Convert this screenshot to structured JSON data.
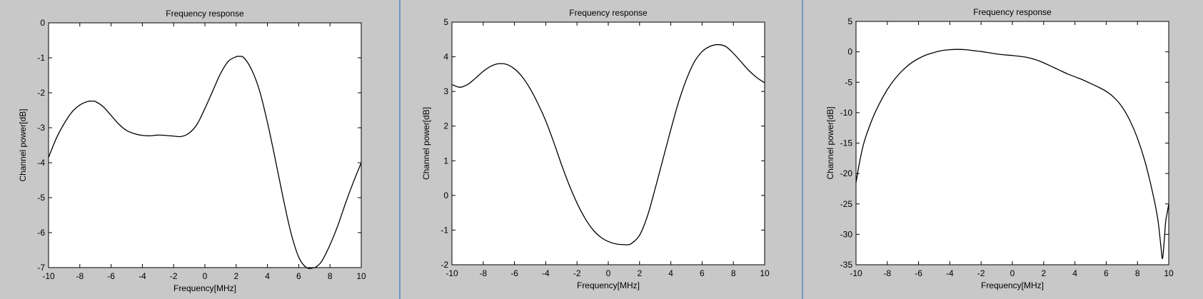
{
  "chart_data": [
    {
      "type": "line",
      "title": "Frequency response",
      "xlabel": "Frequency[MHz]",
      "ylabel": "Channel power[dB]",
      "xlim": [
        -10,
        10
      ],
      "ylim": [
        -7,
        0
      ],
      "xticks": [
        -10,
        -8,
        -6,
        -4,
        -2,
        0,
        2,
        4,
        6,
        8,
        10
      ],
      "yticks": [
        -7,
        -6,
        -5,
        -4,
        -3,
        -2,
        -1,
        0
      ],
      "grid": false,
      "series": [
        {
          "x": [
            -10,
            -9.5,
            -9,
            -8.5,
            -8,
            -7.5,
            -7.2,
            -7,
            -6.5,
            -6,
            -5.5,
            -5,
            -4.5,
            -4,
            -3.5,
            -3,
            -2.5,
            -2,
            -1.5,
            -1,
            -0.5,
            0,
            0.5,
            1,
            1.5,
            2,
            2.2,
            2.5,
            3,
            3.5,
            4,
            4.5,
            5,
            5.5,
            6,
            6.5,
            7,
            7.2,
            7.5,
            8,
            8.5,
            9,
            9.5,
            10
          ],
          "values": [
            -3.85,
            -3.3,
            -2.88,
            -2.55,
            -2.35,
            -2.25,
            -2.24,
            -2.25,
            -2.4,
            -2.65,
            -2.9,
            -3.08,
            -3.17,
            -3.22,
            -3.23,
            -3.21,
            -3.22,
            -3.24,
            -3.25,
            -3.15,
            -2.9,
            -2.45,
            -1.95,
            -1.45,
            -1.1,
            -0.97,
            -0.96,
            -1.0,
            -1.35,
            -1.95,
            -2.85,
            -3.9,
            -5.0,
            -6.0,
            -6.7,
            -7.0,
            -7.0,
            -6.95,
            -6.8,
            -6.35,
            -5.8,
            -5.15,
            -4.55,
            -4.0
          ]
        }
      ]
    },
    {
      "type": "line",
      "title": "Frequency response",
      "xlabel": "Frequency[MHz]",
      "ylabel": "Channel power[dB]",
      "xlim": [
        -10,
        10
      ],
      "ylim": [
        -2,
        5
      ],
      "xticks": [
        -10,
        -8,
        -6,
        -4,
        -2,
        0,
        2,
        4,
        6,
        8,
        10
      ],
      "yticks": [
        -2,
        -1,
        0,
        1,
        2,
        3,
        4,
        5
      ],
      "grid": false,
      "series": [
        {
          "x": [
            -10,
            -9.5,
            -9,
            -8.5,
            -8,
            -7.5,
            -7,
            -6.5,
            -6,
            -5.5,
            -5,
            -4.5,
            -4,
            -3.5,
            -3,
            -2.5,
            -2,
            -1.5,
            -1,
            -0.5,
            0,
            0.5,
            1,
            1.3,
            1.5,
            2,
            2.5,
            3,
            3.5,
            4,
            4.5,
            5,
            5.5,
            6,
            6.5,
            7,
            7.5,
            8,
            8.5,
            9,
            9.5,
            10
          ],
          "values": [
            3.2,
            3.12,
            3.2,
            3.38,
            3.58,
            3.73,
            3.8,
            3.78,
            3.65,
            3.42,
            3.08,
            2.65,
            2.15,
            1.55,
            0.9,
            0.3,
            -0.22,
            -0.65,
            -0.98,
            -1.2,
            -1.33,
            -1.4,
            -1.42,
            -1.42,
            -1.38,
            -1.15,
            -0.6,
            0.2,
            1.05,
            1.9,
            2.7,
            3.35,
            3.85,
            4.15,
            4.3,
            4.35,
            4.3,
            4.1,
            3.85,
            3.6,
            3.4,
            3.25
          ]
        }
      ]
    },
    {
      "type": "line",
      "title": "Frequency response",
      "xlabel": "Frequency[MHz]",
      "ylabel": "Channel power[dB]",
      "xlim": [
        -10,
        10
      ],
      "ylim": [
        -35,
        5
      ],
      "xticks": [
        -10,
        -8,
        -6,
        -4,
        -2,
        0,
        2,
        4,
        6,
        8,
        10
      ],
      "yticks": [
        -35,
        -30,
        -25,
        -20,
        -15,
        -10,
        -5,
        0,
        5
      ],
      "grid": false,
      "series": [
        {
          "x": [
            -10,
            -9.8,
            -9.5,
            -9,
            -8.5,
            -8,
            -7.5,
            -7,
            -6.5,
            -6,
            -5.5,
            -5,
            -4.5,
            -4,
            -3.5,
            -3,
            -2.5,
            -2,
            -1.5,
            -1,
            -0.5,
            0,
            0.5,
            1,
            1.5,
            2,
            2.5,
            3,
            3.5,
            4,
            4.5,
            5,
            5.5,
            6,
            6.5,
            7,
            7.5,
            8,
            8.5,
            9,
            9.3,
            9.5,
            9.6,
            9.7,
            9.8,
            9.9,
            10
          ],
          "values": [
            -21.5,
            -18.5,
            -15,
            -11.3,
            -8.5,
            -6.2,
            -4.4,
            -3.0,
            -1.9,
            -1.1,
            -0.5,
            -0.1,
            0.2,
            0.35,
            0.4,
            0.35,
            0.2,
            0.05,
            -0.15,
            -0.35,
            -0.5,
            -0.6,
            -0.75,
            -0.95,
            -1.3,
            -1.8,
            -2.4,
            -3.0,
            -3.6,
            -4.1,
            -4.6,
            -5.2,
            -5.8,
            -6.5,
            -7.5,
            -9.0,
            -11.2,
            -14.2,
            -18.2,
            -23.5,
            -27.5,
            -32.0,
            -34.0,
            -31.5,
            -28.0,
            -26.5,
            -25.0
          ]
        }
      ]
    }
  ]
}
